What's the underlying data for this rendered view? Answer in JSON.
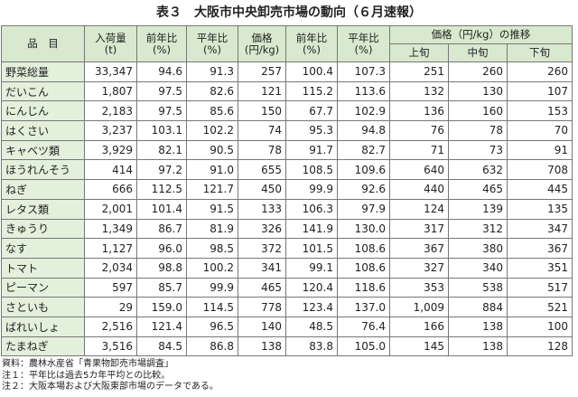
{
  "title": "表３　大阪市中央卸売市場の動向（６月速報）",
  "table": {
    "headers": [
      [
        "品　目"
      ],
      [
        "入荷量",
        "(t)"
      ],
      [
        "前年比",
        "(%)"
      ],
      [
        "平年比",
        "(%)"
      ],
      [
        "価格",
        "(円/kg)"
      ],
      [
        "前年比",
        "(%)"
      ],
      [
        "平年比",
        "(%)"
      ]
    ],
    "group_header": "価格（円/kg）の推移",
    "sub_headers": [
      "上旬",
      "中旬",
      "下旬"
    ],
    "rows": [
      [
        "野菜総量",
        "33,347",
        "94.6",
        "91.3",
        "257",
        "100.4",
        "107.3",
        "251",
        "260",
        "260"
      ],
      [
        "だいこん",
        "1,807",
        "97.5",
        "82.6",
        "121",
        "115.2",
        "113.6",
        "132",
        "130",
        "107"
      ],
      [
        "にんじん",
        "2,183",
        "97.5",
        "85.6",
        "150",
        "67.7",
        "102.9",
        "136",
        "160",
        "153"
      ],
      [
        "はくさい",
        "3,237",
        "103.1",
        "102.2",
        "74",
        "95.3",
        "94.8",
        "76",
        "78",
        "70"
      ],
      [
        "キャベツ類",
        "3,929",
        "82.1",
        "90.5",
        "78",
        "91.7",
        "82.7",
        "71",
        "73",
        "91"
      ],
      [
        "ほうれんそう",
        "414",
        "97.2",
        "91.0",
        "655",
        "108.5",
        "109.6",
        "640",
        "632",
        "708"
      ],
      [
        "ねぎ",
        "666",
        "112.5",
        "121.7",
        "450",
        "99.9",
        "92.6",
        "440",
        "465",
        "445"
      ],
      [
        "レタス類",
        "2,001",
        "101.4",
        "91.5",
        "133",
        "106.3",
        "97.9",
        "124",
        "139",
        "135"
      ],
      [
        "きゅうり",
        "1,349",
        "86.7",
        "81.9",
        "326",
        "141.9",
        "130.0",
        "317",
        "312",
        "347"
      ],
      [
        "なす",
        "1,127",
        "96.0",
        "98.5",
        "372",
        "101.5",
        "108.6",
        "367",
        "380",
        "367"
      ],
      [
        "トマト",
        "2,034",
        "98.8",
        "100.2",
        "341",
        "99.1",
        "108.6",
        "327",
        "340",
        "351"
      ],
      [
        "ピーマン",
        "597",
        "85.7",
        "99.9",
        "465",
        "120.4",
        "118.6",
        "353",
        "538",
        "517"
      ],
      [
        "さといも",
        "29",
        "159.0",
        "114.5",
        "778",
        "123.4",
        "137.0",
        "1,009",
        "884",
        "521"
      ],
      [
        "ばれいしょ",
        "2,516",
        "121.4",
        "96.5",
        "140",
        "48.5",
        "76.4",
        "166",
        "138",
        "100"
      ],
      [
        "たまねぎ",
        "3,516",
        "84.5",
        "86.8",
        "138",
        "83.8",
        "105.0",
        "145",
        "138",
        "128"
      ]
    ]
  },
  "notes": [
    "資料：農林水産省「青果物卸売市場調査」",
    "注１：平年比は過去5カ年平均との比較。",
    "注２：大阪本場および大阪東部市場のデータである。"
  ]
}
